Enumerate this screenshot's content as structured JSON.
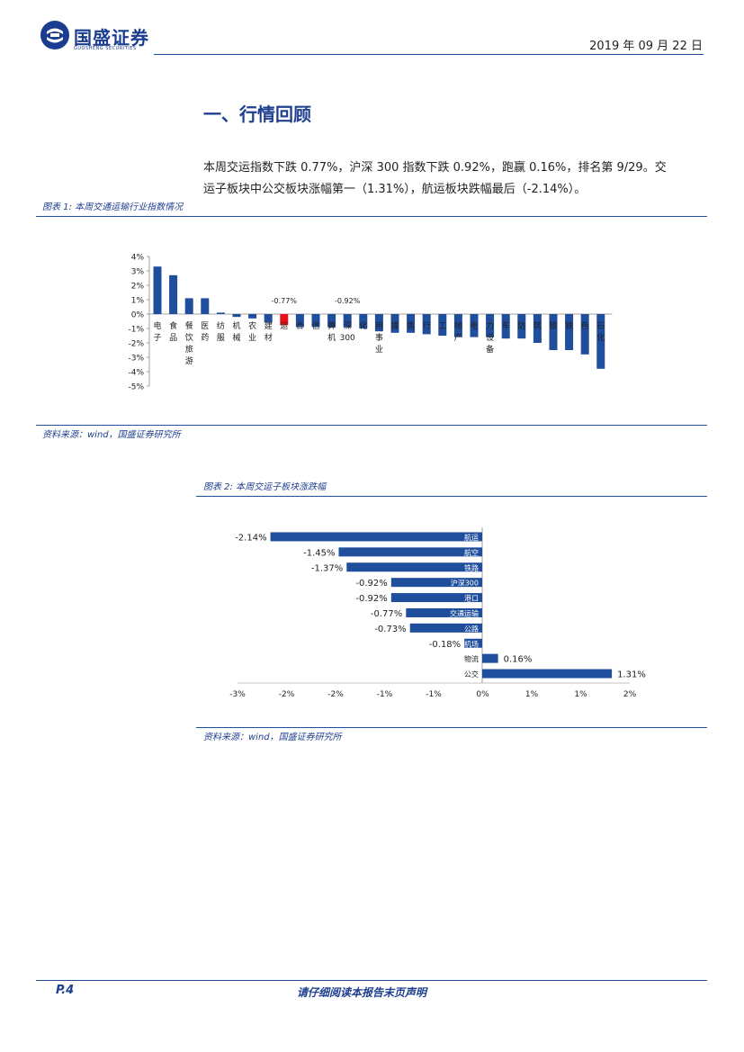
{
  "header": {
    "logo_name": "国盛证券",
    "logo_sub": "GUOSHENG SECURITIES",
    "date": "2019 年 09 月 22 日"
  },
  "section": {
    "title": "一、行情回顾"
  },
  "paragraph": {
    "line1": "本周交运指数下跌 0.77%，沪深 300 指数下跌 0.92%，跑赢 0.16%，排名第 9/29。交",
    "line2": "运子板块中公交板块涨幅第一（1.31%），航运板块跌幅最后（-2.14%）。"
  },
  "figure1": {
    "caption": "图表 1: 本周交通运输行业指数情况",
    "source": "资料来源：wind，国盛证券研究所"
  },
  "figure2": {
    "caption": "图表 2: 本周交运子板块涨跌幅",
    "source": "资料来源：wind，国盛证券研究所"
  },
  "footer": {
    "page": "P.4",
    "disclaimer": "请仔细阅读本报告末页声明"
  },
  "colors": {
    "bar": "#1f4e9c",
    "highlight": "#e8111b",
    "brand": "#1a3d8f"
  },
  "chart_data": [
    {
      "type": "bar",
      "title": "",
      "ylim": [
        -5,
        4
      ],
      "yticks": [
        "4%",
        "3%",
        "2%",
        "1%",
        "0%",
        "-1%",
        "-2%",
        "-3%",
        "-4%",
        "-5%"
      ],
      "annotations": [
        {
          "category_index": 8,
          "text": "-0.77%"
        },
        {
          "category_index": 12,
          "text": "-0.92%"
        }
      ],
      "highlight_index": 8,
      "categories": [
        "电子",
        "食品",
        "餐饮旅游",
        "医药",
        "纺服",
        "机械",
        "农业",
        "建材",
        "交运",
        "综合",
        "通信",
        "计算机",
        "沪深300",
        "化工",
        "公用事业",
        "传媒",
        "零售",
        "银行",
        "轻工",
        "房地产",
        "家电",
        "电力设备",
        "汽车",
        "国防",
        "建筑",
        "非银",
        "钢铁",
        "有色",
        "石油石化"
      ],
      "labels": [
        "电子",
        "食品",
        "餐饮旅游",
        "医药",
        "纺服",
        "机械",
        "农业",
        "建材",
        "运",
        "合",
        "信",
        "算机",
        "深300",
        "化",
        "用事业",
        "媒",
        "售",
        "行",
        "工",
        "地产",
        "电",
        "力设备",
        "车",
        "防",
        "筑",
        "银",
        "铁",
        "色",
        "石化"
      ],
      "values": [
        3.3,
        2.7,
        1.1,
        1.1,
        0.1,
        -0.2,
        -0.3,
        -0.6,
        -0.77,
        -0.9,
        -0.9,
        -0.9,
        -0.92,
        -1.0,
        -1.2,
        -1.3,
        -1.3,
        -1.4,
        -1.5,
        -1.6,
        -1.6,
        -1.6,
        -1.7,
        -1.7,
        -2.0,
        -2.5,
        -2.5,
        -2.8,
        -3.8
      ]
    },
    {
      "type": "bar",
      "orientation": "horizontal",
      "title": "",
      "xlim": [
        -2.5,
        2.5
      ],
      "xticks": [
        "-3%",
        "-2%",
        "-2%",
        "-1%",
        "-1%",
        "0%",
        "1%",
        "1%",
        "2%"
      ],
      "categories": [
        "航运",
        "航空",
        "铁路",
        "沪深300",
        "港口",
        "交通运输",
        "公路",
        "机场",
        "物流",
        "公交"
      ],
      "values": [
        -2.14,
        -1.45,
        -1.37,
        -0.92,
        -0.92,
        -0.77,
        -0.73,
        -0.18,
        0.16,
        1.31
      ],
      "value_labels": [
        "-2.14%",
        "-1.45%",
        "-1.37%",
        "-0.92%",
        "-0.92%",
        "-0.77%",
        "-0.73%",
        "-0.18%",
        "0.16%",
        "1.31%"
      ]
    }
  ]
}
